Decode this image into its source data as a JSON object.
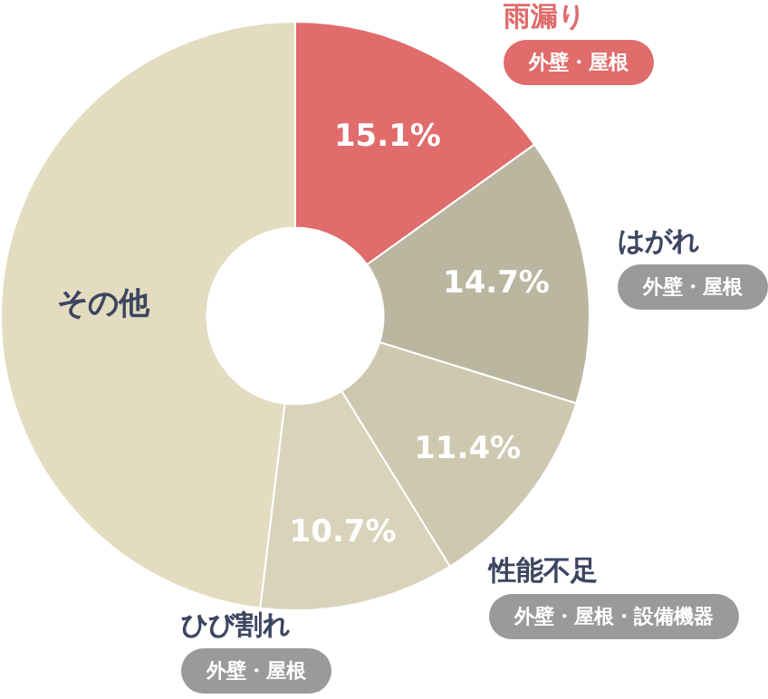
{
  "chart_data": {
    "type": "donut",
    "categories": [
      "雨漏り",
      "はがれ",
      "性能不足",
      "ひび割れ",
      "その他"
    ],
    "values": [
      15.1,
      14.7,
      11.4,
      10.7,
      48.1
    ],
    "colors": [
      "#e06c6c",
      "#bab6a0",
      "#cdc8af",
      "#d8d3ba",
      "#e3dcc0"
    ],
    "value_labels": [
      "15.1%",
      "14.7%",
      "11.4%",
      "10.7%",
      null
    ],
    "annotations": [
      "外壁・屋根",
      "外壁・屋根",
      "外壁・屋根・設備機器",
      "外壁・屋根"
    ],
    "legend": false
  }
}
